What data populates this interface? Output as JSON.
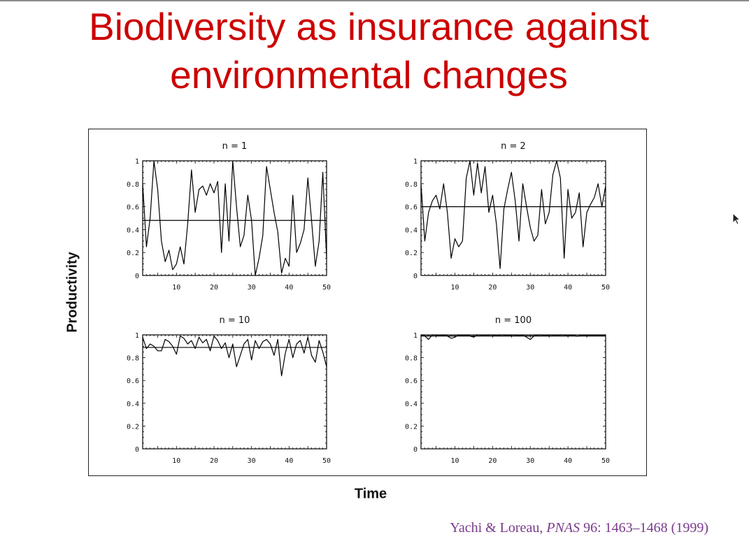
{
  "slide": {
    "title_line1": "Biodiversity as insurance against",
    "title_line2": "environmental changes",
    "ylabel": "Productivity",
    "xlabel": "Time",
    "citation": {
      "authors": "Yachi & Loreau, ",
      "journal": "PNAS",
      "details": " 96: 1463–1468 (1999)"
    },
    "colors": {
      "title": "#cc0000",
      "citation": "#7a3a8c",
      "line": "#000000"
    }
  },
  "chart_data": [
    {
      "type": "line",
      "title": "n = 1",
      "xlim": [
        1,
        50
      ],
      "ylim": [
        0,
        1
      ],
      "x_ticks": [
        10,
        20,
        30,
        40,
        50
      ],
      "y_ticks": [
        0,
        0.2,
        0.4,
        0.6,
        0.8,
        1
      ],
      "y_tick_labels": [
        "0",
        "0.2",
        "0.4",
        "0.6",
        "0.8",
        "1"
      ],
      "mean": 0.48,
      "series": [
        {
          "x": [
            1,
            2,
            3,
            4,
            5,
            6,
            7,
            8,
            9,
            10,
            11,
            12,
            13,
            14,
            15,
            16,
            17,
            18,
            19,
            20,
            21,
            22,
            23,
            24,
            25,
            26,
            27,
            28,
            29,
            30,
            31,
            32,
            33,
            34,
            35,
            36,
            37,
            38,
            39,
            40,
            41,
            42,
            43,
            44,
            45,
            46,
            47,
            48,
            49,
            50
          ],
          "values": [
            0.8,
            0.25,
            0.5,
            1.0,
            0.75,
            0.3,
            0.12,
            0.22,
            0.05,
            0.1,
            0.25,
            0.1,
            0.45,
            0.92,
            0.55,
            0.75,
            0.78,
            0.7,
            0.8,
            0.72,
            0.82,
            0.2,
            0.8,
            0.3,
            1.0,
            0.6,
            0.25,
            0.35,
            0.7,
            0.48,
            0.0,
            0.15,
            0.35,
            0.95,
            0.75,
            0.55,
            0.38,
            0.02,
            0.15,
            0.08,
            0.7,
            0.2,
            0.28,
            0.4,
            0.85,
            0.48,
            0.08,
            0.3,
            0.9,
            0.15
          ]
        }
      ]
    },
    {
      "type": "line",
      "title": "n = 2",
      "xlim": [
        1,
        50
      ],
      "ylim": [
        0,
        1
      ],
      "x_ticks": [
        10,
        20,
        30,
        40,
        50
      ],
      "y_ticks": [
        0,
        0.2,
        0.4,
        0.6,
        0.8,
        1
      ],
      "y_tick_labels": [
        "0",
        "0.2",
        "0.4",
        "0.6",
        "0.8",
        "1"
      ],
      "mean": 0.6,
      "series": [
        {
          "x": [
            1,
            2,
            3,
            4,
            5,
            6,
            7,
            8,
            9,
            10,
            11,
            12,
            13,
            14,
            15,
            16,
            17,
            18,
            19,
            20,
            21,
            22,
            23,
            24,
            25,
            26,
            27,
            28,
            29,
            30,
            31,
            32,
            33,
            34,
            35,
            36,
            37,
            38,
            39,
            40,
            41,
            42,
            43,
            44,
            45,
            46,
            47,
            48,
            49,
            50
          ],
          "values": [
            0.8,
            0.3,
            0.55,
            0.65,
            0.7,
            0.58,
            0.8,
            0.55,
            0.15,
            0.32,
            0.25,
            0.3,
            0.85,
            1.0,
            0.7,
            0.98,
            0.72,
            0.95,
            0.55,
            0.7,
            0.45,
            0.06,
            0.58,
            0.75,
            0.9,
            0.65,
            0.3,
            0.8,
            0.6,
            0.42,
            0.3,
            0.35,
            0.75,
            0.45,
            0.55,
            0.88,
            1.0,
            0.85,
            0.15,
            0.75,
            0.5,
            0.55,
            0.72,
            0.25,
            0.55,
            0.62,
            0.68,
            0.8,
            0.6,
            0.78
          ]
        }
      ]
    },
    {
      "type": "line",
      "title": "n = 10",
      "xlim": [
        1,
        50
      ],
      "ylim": [
        0,
        1
      ],
      "x_ticks": [
        10,
        20,
        30,
        40,
        50
      ],
      "y_ticks": [
        0,
        0.2,
        0.4,
        0.6,
        0.8,
        1
      ],
      "y_tick_labels": [
        "0",
        "0.2",
        "0.4",
        "0.6",
        "0.8",
        "1"
      ],
      "mean": 0.89,
      "series": [
        {
          "x": [
            1,
            2,
            3,
            4,
            5,
            6,
            7,
            8,
            9,
            10,
            11,
            12,
            13,
            14,
            15,
            16,
            17,
            18,
            19,
            20,
            21,
            22,
            23,
            24,
            25,
            26,
            27,
            28,
            29,
            30,
            31,
            32,
            33,
            34,
            35,
            36,
            37,
            38,
            39,
            40,
            41,
            42,
            43,
            44,
            45,
            46,
            47,
            48,
            49,
            50
          ],
          "values": [
            0.98,
            0.88,
            0.92,
            0.9,
            0.86,
            0.86,
            0.96,
            0.94,
            0.9,
            0.83,
            0.99,
            0.97,
            0.92,
            0.95,
            0.88,
            0.98,
            0.93,
            0.96,
            0.86,
            0.99,
            0.95,
            0.88,
            0.93,
            0.8,
            0.92,
            0.72,
            0.82,
            0.92,
            0.96,
            0.78,
            0.95,
            0.88,
            0.94,
            0.96,
            0.92,
            0.82,
            0.96,
            0.64,
            0.84,
            0.96,
            0.8,
            0.92,
            0.95,
            0.84,
            0.98,
            0.82,
            0.76,
            0.95,
            0.85,
            0.72
          ]
        }
      ]
    },
    {
      "type": "line",
      "title": "n = 100",
      "xlim": [
        1,
        50
      ],
      "ylim": [
        0,
        1
      ],
      "x_ticks": [
        10,
        20,
        30,
        40,
        50
      ],
      "y_ticks": [
        0,
        0.2,
        0.4,
        0.6,
        0.8,
        1
      ],
      "y_tick_labels": [
        "0",
        "0.2",
        "0.4",
        "0.6",
        "0.8",
        "1"
      ],
      "mean": 0.99,
      "series": [
        {
          "x": [
            1,
            2,
            3,
            4,
            5,
            6,
            7,
            8,
            9,
            10,
            11,
            12,
            13,
            14,
            15,
            16,
            17,
            18,
            19,
            20,
            21,
            22,
            23,
            24,
            25,
            26,
            27,
            28,
            29,
            30,
            31,
            32,
            33,
            34,
            35,
            36,
            37,
            38,
            39,
            40,
            41,
            42,
            43,
            44,
            45,
            46,
            47,
            48,
            49,
            50
          ],
          "values": [
            1.0,
            0.99,
            0.96,
            1.0,
            1.0,
            0.99,
            1.0,
            0.99,
            0.97,
            0.98,
            1.0,
            0.99,
            1.0,
            0.99,
            0.98,
            1.0,
            1.0,
            0.99,
            1.0,
            1.0,
            0.99,
            1.0,
            1.0,
            0.99,
            1.0,
            1.0,
            0.99,
            1.0,
            0.98,
            0.96,
            0.99,
            1.0,
            1.0,
            0.99,
            1.0,
            1.0,
            0.99,
            1.0,
            1.0,
            0.99,
            1.0,
            0.99,
            0.99,
            1.0,
            0.99,
            1.0,
            0.99,
            1.0,
            0.99,
            1.0
          ]
        }
      ]
    }
  ]
}
